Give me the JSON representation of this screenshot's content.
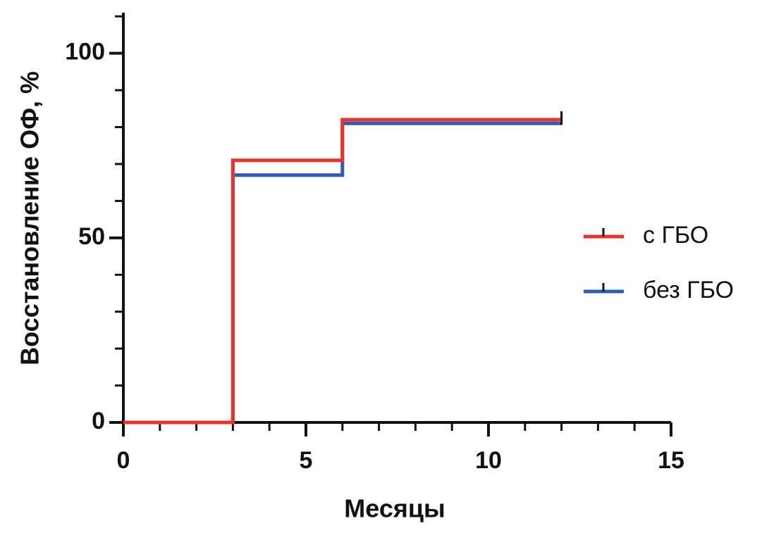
{
  "chart_data": {
    "type": "step",
    "x_label": "Месяцы",
    "y_label": "Восстановление ОФ, %",
    "x": [
      0,
      3,
      6,
      12
    ],
    "series": [
      {
        "name": "с ГБО",
        "color": "#e8322b",
        "values": [
          0,
          71,
          82,
          82
        ]
      },
      {
        "name": "без ГБО",
        "color": "#2f5db5",
        "values": [
          0,
          67,
          81,
          81
        ]
      }
    ],
    "xlim": [
      0,
      15
    ],
    "xticks": [
      0,
      5,
      10,
      15
    ],
    "xminor_step": 1,
    "ylim": [
      0,
      111
    ],
    "yticks": [
      0,
      50,
      100
    ],
    "yminor_step": 10,
    "censor_marks": true,
    "legend": "right"
  }
}
